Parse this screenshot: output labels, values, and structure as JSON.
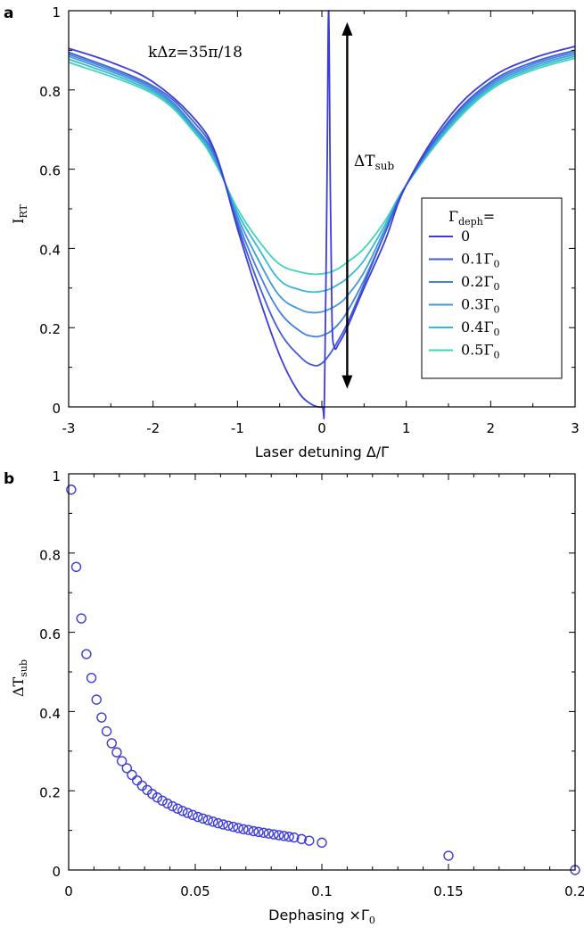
{
  "panels": {
    "a": {
      "label": "a",
      "annotation": {
        "text": "kΔz=35π/18"
      },
      "arrow_label": {
        "main": "ΔT",
        "sub": "sub"
      },
      "xlabel": "Laser detuning Δ/Γ",
      "ylabel": {
        "main": "I",
        "sub": "RT"
      },
      "legend_title": {
        "main": "Γ",
        "sub": "deph",
        "suffix": "="
      },
      "xticks": [
        "-3",
        "-2",
        "-1",
        "0",
        "1",
        "2",
        "3"
      ],
      "yticks": [
        "0",
        "0.2",
        "0.4",
        "0.6",
        "0.8",
        "1"
      ]
    },
    "b": {
      "label": "b",
      "xlabel": {
        "main": "Dephasing ×Γ",
        "sub": "0"
      },
      "ylabel": {
        "main": "ΔT",
        "sub": "sub"
      },
      "xticks": [
        "0",
        "0.05",
        "0.1",
        "0.15",
        "0.2"
      ],
      "yticks": [
        "0",
        "0.2",
        "0.4",
        "0.6",
        "0.8",
        "1"
      ]
    }
  },
  "chart_data": [
    {
      "type": "line",
      "xlabel": "Laser detuning Δ/Γ",
      "ylabel": "I_RT",
      "xlim": [
        -3,
        3
      ],
      "ylim": [
        0,
        1
      ],
      "grid": false,
      "legend": {
        "title": "Γ_deph=",
        "placement": "center-right",
        "entries": [
          {
            "label": "0",
            "color": "#3c3cd8"
          },
          {
            "label": "0.1Γ₀",
            "color": "#3f5ed6"
          },
          {
            "label": "0.2Γ₀",
            "color": "#4480df"
          },
          {
            "label": "0.3Γ₀",
            "color": "#3f9ad6"
          },
          {
            "label": "0.4Γ₀",
            "color": "#38b8d6"
          },
          {
            "label": "0.5Γ₀",
            "color": "#3fd6b6"
          }
        ]
      },
      "annotations": [
        {
          "text": "kΔz=35π/18",
          "x": -2.05,
          "y": 0.9
        },
        {
          "text": "ΔT_sub",
          "type": "double-arrow",
          "x": 0.3,
          "y_from": 0.1,
          "y_to": 0.98
        }
      ],
      "series": [
        {
          "label": "0",
          "color": "#3c3cd8",
          "x": [
            -3,
            -2.5,
            -2,
            -1.5,
            -1.25,
            -1,
            -0.75,
            -0.5,
            -0.3,
            -0.15,
            0,
            0.03,
            0.06,
            0.08,
            0.1,
            0.12,
            0.15,
            0.2,
            0.3,
            0.5,
            0.75,
            1,
            1.5,
            2,
            2.5,
            3
          ],
          "y": [
            0.905,
            0.87,
            0.82,
            0.725,
            0.635,
            0.45,
            0.28,
            0.13,
            0.045,
            0.01,
            0,
            0.02,
            0.55,
            1.0,
            0.55,
            0.22,
            0.15,
            0.16,
            0.2,
            0.3,
            0.42,
            0.56,
            0.73,
            0.83,
            0.88,
            0.91
          ]
        },
        {
          "label": "0.1Γ₀",
          "color": "#3f5ed6",
          "x": [
            -3,
            -2,
            -1.5,
            -1.25,
            -1,
            -0.75,
            -0.5,
            -0.25,
            -0.1,
            0,
            0.1,
            0.2,
            0.3,
            0.5,
            0.75,
            1,
            1.5,
            2,
            2.5,
            3
          ],
          "y": [
            0.895,
            0.81,
            0.715,
            0.63,
            0.46,
            0.31,
            0.19,
            0.125,
            0.105,
            0.11,
            0.135,
            0.17,
            0.21,
            0.31,
            0.44,
            0.56,
            0.72,
            0.82,
            0.87,
            0.9
          ]
        },
        {
          "label": "0.2Γ₀",
          "color": "#4480df",
          "x": [
            -3,
            -2,
            -1.5,
            -1.25,
            -1,
            -0.75,
            -0.5,
            -0.25,
            -0.1,
            0,
            0.1,
            0.2,
            0.3,
            0.5,
            0.75,
            1,
            1.5,
            2,
            2.5,
            3
          ],
          "y": [
            0.89,
            0.805,
            0.705,
            0.625,
            0.47,
            0.34,
            0.24,
            0.19,
            0.178,
            0.18,
            0.19,
            0.21,
            0.24,
            0.32,
            0.44,
            0.56,
            0.715,
            0.815,
            0.865,
            0.895
          ]
        },
        {
          "label": "0.3Γ₀",
          "color": "#3f9ad6",
          "x": [
            -3,
            -2,
            -1.5,
            -1.25,
            -1,
            -0.75,
            -0.5,
            -0.25,
            -0.1,
            0,
            0.1,
            0.2,
            0.3,
            0.5,
            0.75,
            1,
            1.5,
            2,
            2.5,
            3
          ],
          "y": [
            0.885,
            0.8,
            0.7,
            0.62,
            0.48,
            0.37,
            0.28,
            0.245,
            0.238,
            0.24,
            0.248,
            0.26,
            0.28,
            0.34,
            0.45,
            0.56,
            0.71,
            0.81,
            0.86,
            0.89
          ]
        },
        {
          "label": "0.4Γ₀",
          "color": "#38b8d6",
          "x": [
            -3,
            -2,
            -1.5,
            -1.25,
            -1,
            -0.75,
            -0.5,
            -0.25,
            -0.1,
            0,
            0.1,
            0.2,
            0.3,
            0.5,
            0.75,
            1,
            1.5,
            2,
            2.5,
            3
          ],
          "y": [
            0.878,
            0.795,
            0.695,
            0.615,
            0.49,
            0.4,
            0.32,
            0.295,
            0.29,
            0.292,
            0.298,
            0.31,
            0.325,
            0.37,
            0.46,
            0.56,
            0.705,
            0.805,
            0.855,
            0.885
          ]
        },
        {
          "label": "0.5Γ₀",
          "color": "#3fd6b6",
          "x": [
            -3,
            -2,
            -1.5,
            -1.25,
            -1,
            -0.75,
            -0.5,
            -0.25,
            -0.1,
            0,
            0.1,
            0.2,
            0.3,
            0.5,
            0.75,
            1,
            1.5,
            2,
            2.5,
            3
          ],
          "y": [
            0.87,
            0.79,
            0.69,
            0.61,
            0.5,
            0.42,
            0.36,
            0.34,
            0.335,
            0.336,
            0.34,
            0.35,
            0.365,
            0.4,
            0.47,
            0.56,
            0.7,
            0.8,
            0.85,
            0.88
          ]
        }
      ]
    },
    {
      "type": "scatter",
      "xlabel": "Dephasing ×Γ₀",
      "ylabel": "ΔT_sub",
      "xlim": [
        0,
        0.2
      ],
      "ylim": [
        0,
        1
      ],
      "grid": false,
      "marker_color": "#3c3cd8",
      "series": [
        {
          "name": "",
          "x": [
            0.001,
            0.003,
            0.005,
            0.007,
            0.009,
            0.011,
            0.013,
            0.015,
            0.017,
            0.019,
            0.021,
            0.023,
            0.025,
            0.027,
            0.029,
            0.031,
            0.033,
            0.035,
            0.037,
            0.039,
            0.041,
            0.043,
            0.045,
            0.047,
            0.049,
            0.051,
            0.053,
            0.055,
            0.057,
            0.059,
            0.061,
            0.063,
            0.065,
            0.067,
            0.069,
            0.071,
            0.073,
            0.075,
            0.077,
            0.079,
            0.081,
            0.083,
            0.085,
            0.087,
            0.089,
            0.092,
            0.095,
            0.1,
            0.15,
            0.2
          ],
          "y": [
            0.96,
            0.765,
            0.635,
            0.545,
            0.485,
            0.43,
            0.385,
            0.35,
            0.32,
            0.297,
            0.275,
            0.257,
            0.24,
            0.226,
            0.213,
            0.202,
            0.192,
            0.183,
            0.175,
            0.168,
            0.161,
            0.155,
            0.149,
            0.144,
            0.139,
            0.134,
            0.13,
            0.126,
            0.122,
            0.118,
            0.115,
            0.112,
            0.109,
            0.106,
            0.103,
            0.101,
            0.098,
            0.096,
            0.094,
            0.092,
            0.09,
            0.088,
            0.086,
            0.084,
            0.082,
            0.078,
            0.074,
            0.069,
            0.036,
            0.0
          ]
        }
      ]
    }
  ]
}
